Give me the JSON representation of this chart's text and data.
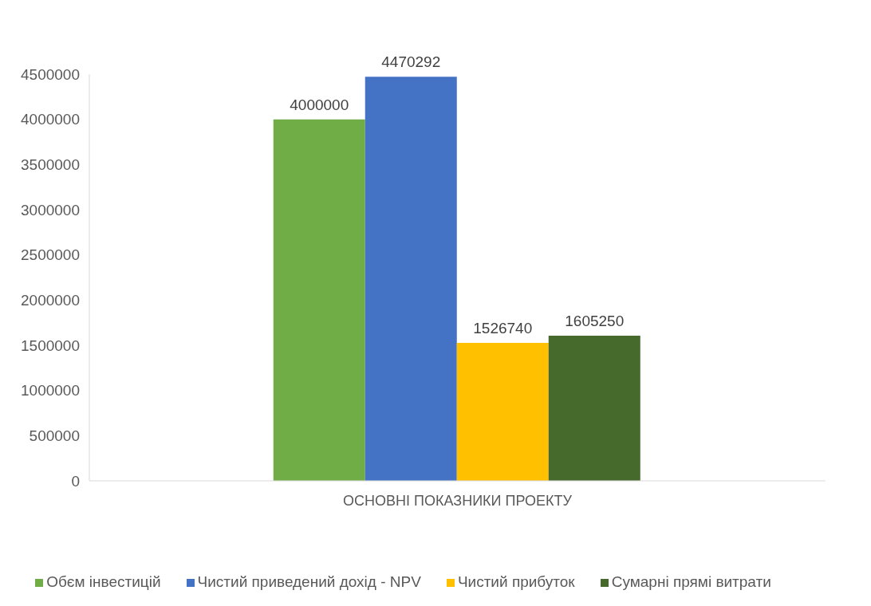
{
  "chart_data": {
    "type": "bar",
    "categories": [
      "ОСНОВНІ ПОКАЗНИКИ ПРОЕКТУ"
    ],
    "series": [
      {
        "name": "Обєм інвестицій",
        "color": "#70ad47",
        "values": [
          4000000
        ]
      },
      {
        "name": "Чистий приведений дохід - NPV",
        "color": "#4472c4",
        "values": [
          4470292
        ]
      },
      {
        "name": "Чистий прибуток",
        "color": "#ffc000",
        "values": [
          1526740
        ]
      },
      {
        "name": "Сумарні прямі витрати",
        "color": "#466a2c",
        "values": [
          1605250
        ]
      }
    ],
    "ylim": [
      0,
      4500000
    ],
    "yticks": [
      0,
      500000,
      1000000,
      1500000,
      2000000,
      2500000,
      3000000,
      3500000,
      4000000,
      4500000
    ],
    "legend": "bottom",
    "data_labels": true
  }
}
